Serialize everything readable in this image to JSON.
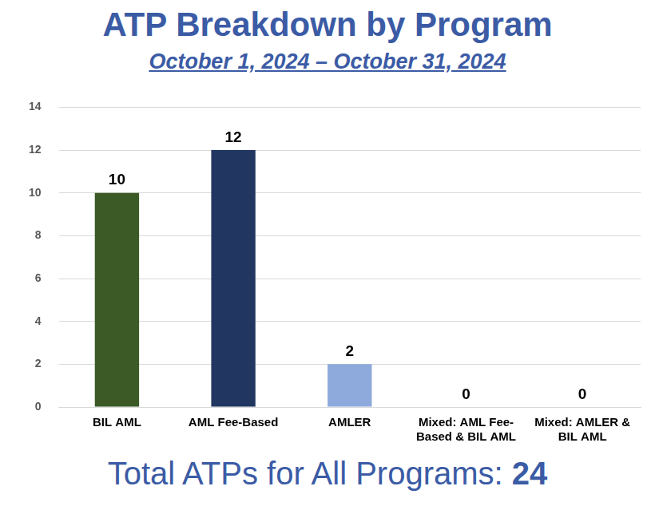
{
  "chart_data": {
    "type": "bar",
    "title": "ATP Breakdown by Program",
    "subtitle": "October 1, 2024 – October 31, 2024",
    "categories": [
      "BIL AML",
      "AML Fee-Based",
      "AMLER",
      "Mixed: AML Fee-Based & BIL AML",
      "Mixed: AMLER & BIL AML"
    ],
    "values": [
      10,
      12,
      2,
      0,
      0
    ],
    "colors": [
      "#3B5A26",
      "#213761",
      "#8EA9DB",
      "#A5A5A5",
      "#FFC000"
    ],
    "ylim": [
      0,
      14
    ],
    "yticks": [
      0,
      2,
      4,
      6,
      8,
      10,
      12,
      14
    ],
    "grid": true,
    "data_labels": true,
    "footer": {
      "label": "Total ATPs for All Programs:",
      "value": 24
    }
  }
}
